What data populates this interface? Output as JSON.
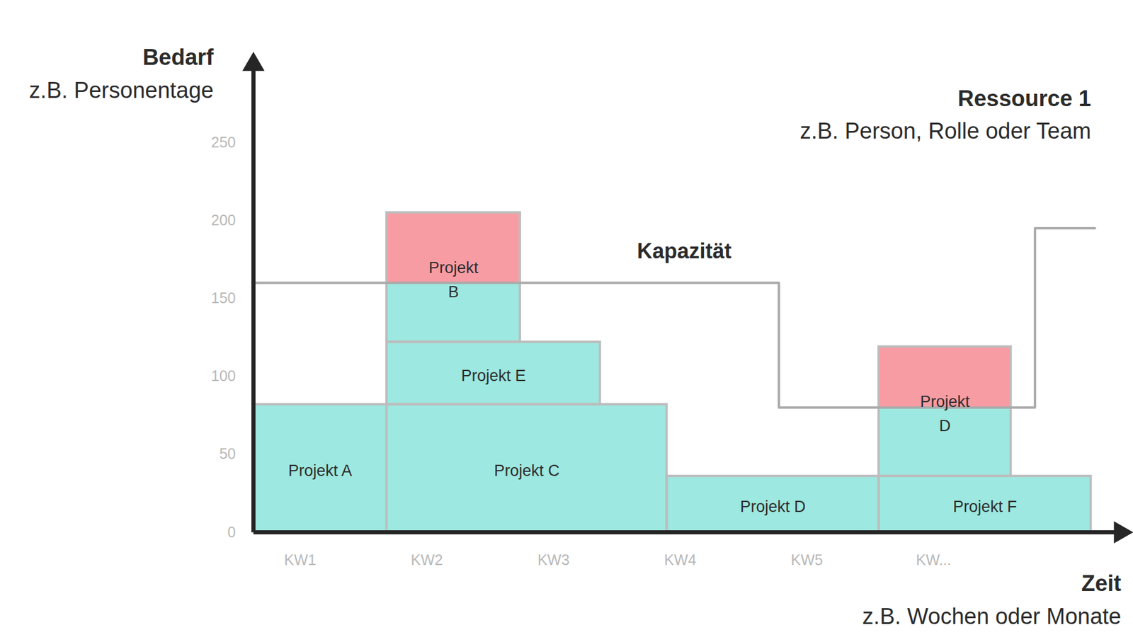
{
  "chart_data": {
    "type": "bar",
    "stacked": true,
    "y_label": "Bedarf",
    "y_label_note": "z.B. Personentage",
    "x_label": "Zeit",
    "x_label_note": "z.B. Wochen oder Monate",
    "resource": {
      "title": "Ressource 1",
      "subtitle": "z.B. Person, Rolle oder Team"
    },
    "xlim": [
      0,
      6.5
    ],
    "xticks": [
      {
        "value": 0.35,
        "label": "KW1"
      },
      {
        "value": 1.3,
        "label": "KW2"
      },
      {
        "value": 2.25,
        "label": "KW3"
      },
      {
        "value": 3.2,
        "label": "KW4"
      },
      {
        "value": 4.15,
        "label": "KW5"
      },
      {
        "value": 5.1,
        "label": "KW..."
      }
    ],
    "ylim": [
      0,
      300
    ],
    "yticks": [
      0,
      50,
      100,
      150,
      200,
      250
    ],
    "series": [
      {
        "name": "Bedarf",
        "type": "bar",
        "color": "#9de8e0",
        "segments": [
          {
            "name": "Projekt A",
            "x0": 0,
            "x1": 1.0,
            "value": 82
          },
          {
            "name": "Projekt C",
            "x0": 1.0,
            "x1": 3.1,
            "value": 82
          },
          {
            "name": "Projekt E",
            "x0": 1.0,
            "x1": 2.6,
            "value": 40
          },
          {
            "name": "Projekt B",
            "x0": 1.0,
            "x1": 2.0,
            "value": 83
          },
          {
            "name": "Projekt D",
            "x0": 3.1,
            "x1": 4.69,
            "value": 36
          },
          {
            "name": "Projekt F",
            "x0": 4.69,
            "x1": 6.28,
            "value": 36
          },
          {
            "name": "Projekt D",
            "x0": 4.69,
            "x1": 5.68,
            "value": 83
          }
        ]
      },
      {
        "name": "Kapazität",
        "type": "line",
        "color": "#aaaaaa",
        "steps": [
          {
            "x0": 0,
            "x1": 3.94,
            "value": 160
          },
          {
            "x0": 3.94,
            "x1": 5.86,
            "value": 80
          },
          {
            "x0": 5.86,
            "x1": 6.31,
            "value": 195
          }
        ]
      }
    ]
  }
}
